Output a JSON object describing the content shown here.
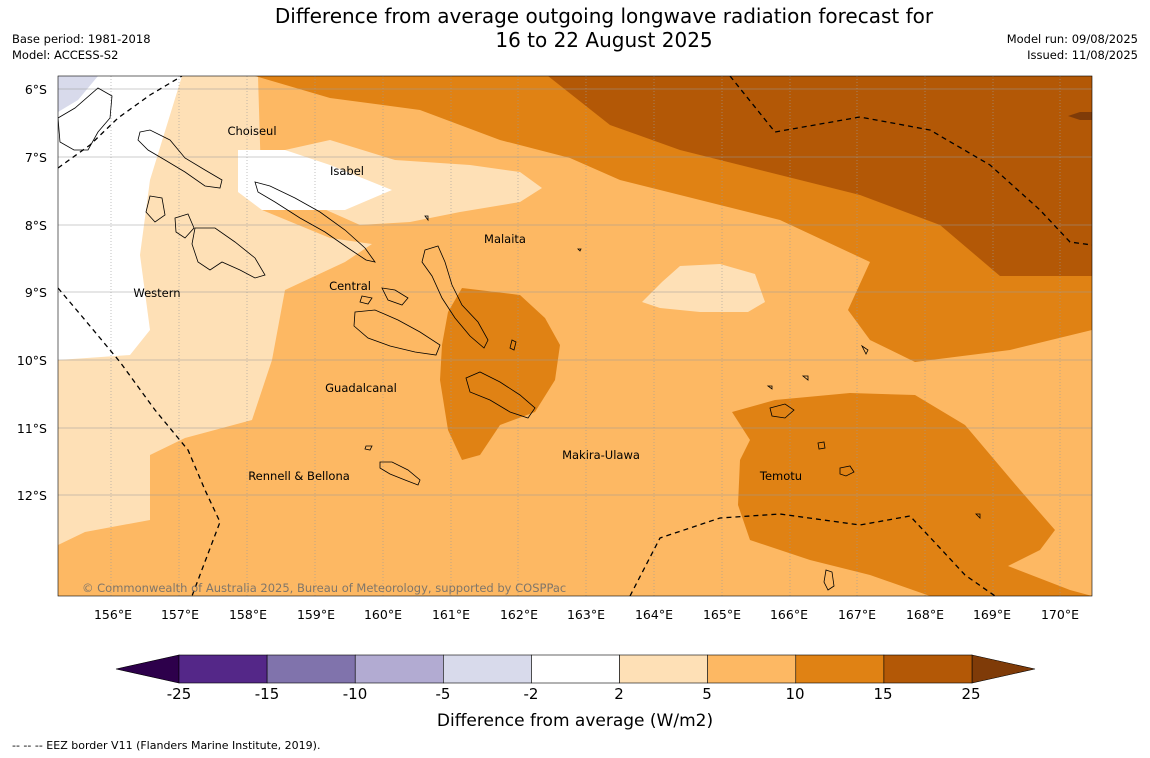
{
  "title": {
    "line1": "Difference from average outgoing longwave radiation forecast for",
    "line2": "16 to 22 August 2025"
  },
  "meta": {
    "base_period": "Base period: 1981-2018",
    "model": "Model: ACCESS-S2",
    "model_run": "Model run: 09/08/2025",
    "issued": "Issued: 11/08/2025"
  },
  "map": {
    "lon_ticks": [
      "156°E",
      "157°E",
      "158°E",
      "159°E",
      "160°E",
      "161°E",
      "162°E",
      "163°E",
      "164°E",
      "165°E",
      "166°E",
      "167°E",
      "168°E",
      "169°E",
      "170°E"
    ],
    "lat_ticks": [
      "6°S",
      "7°S",
      "8°S",
      "9°S",
      "10°S",
      "11°S",
      "12°S"
    ],
    "regions": [
      "Choiseul",
      "Isabel",
      "Malaita",
      "Western",
      "Central",
      "Guadalcanal",
      "Rennell & Bellona",
      "Makira-Ulawa",
      "Temotu"
    ],
    "copyright": "© Commonwealth of Australia 2025, Bureau of Meteorology, supported by COSPPac"
  },
  "colorbar": {
    "ticks": [
      "-25",
      "-15",
      "-10",
      "-5",
      "-2",
      "2",
      "5",
      "10",
      "15",
      "25"
    ],
    "colors": [
      "#542788",
      "#8073ac",
      "#b2abd2",
      "#d8daeb",
      "#ffffff",
      "#fee0b6",
      "#fdb863",
      "#e08214",
      "#b35806"
    ],
    "under_color": "#2d004b",
    "over_color": "#7f3b08",
    "label": "Difference from average (W/m2)"
  },
  "footer": "--  --  -- EEZ border V11 (Flanders Marine Institute, 2019)."
}
